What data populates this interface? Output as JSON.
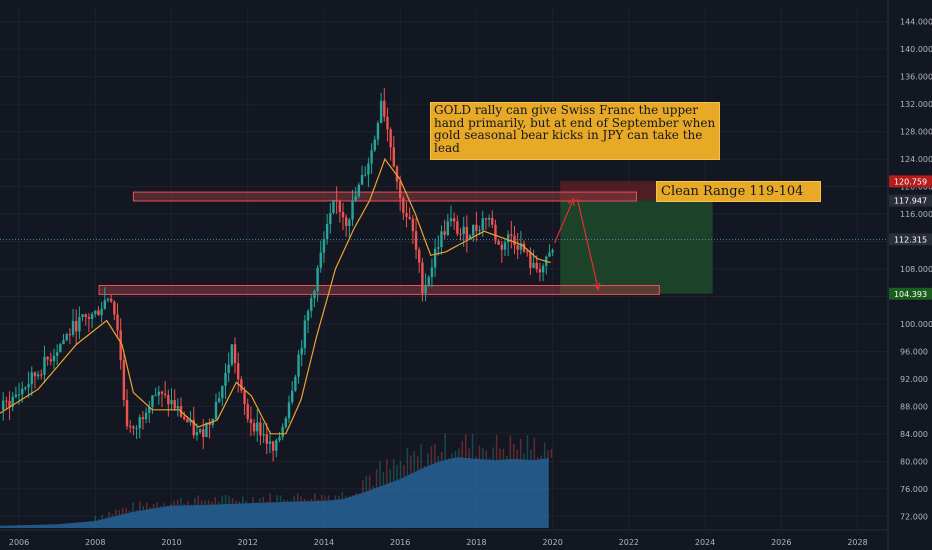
{
  "annotations": {
    "note_text": "GOLD rally can give Swiss Franc the upper hand primarily, but at end of September when gold seasonal bear kicks in JPY can take the lead",
    "range_label": "Clean Range 119-104"
  },
  "price_badges": [
    {
      "value": "120.759",
      "color": "#b71c1c"
    },
    {
      "value": "117.947",
      "color": "#2a2e39"
    },
    {
      "value": "112.315",
      "color": "#2a2e39"
    },
    {
      "value": "104.393",
      "color": "#1b5e20"
    }
  ],
  "colors": {
    "background": "#131722",
    "grid": "#1e222d",
    "up": "#26a69a",
    "down": "#ef5350",
    "ma": "#f0a030",
    "volume": "#2a6fa8",
    "zone_fill": "#8a3a40",
    "zone_stroke": "#e8505a",
    "target_fill": "#1f4a2a",
    "stop_fill": "#5a1e24",
    "arrow": "#e03030"
  },
  "chart_data": {
    "type": "candlestick",
    "x_ticks": [
      "2006",
      "2008",
      "2010",
      "2012",
      "2014",
      "2016",
      "2018",
      "2020",
      "2022",
      "2024",
      "2026",
      "2028"
    ],
    "y_ticks": [
      "72.000",
      "76.000",
      "80.000",
      "84.000",
      "88.000",
      "92.000",
      "96.000",
      "100.000",
      "104.000",
      "108.000",
      "112.000",
      "116.000",
      "120.000",
      "124.000",
      "128.000",
      "132.000",
      "136.000",
      "140.000",
      "144.000"
    ],
    "ylim": [
      70,
      146
    ],
    "xlim": [
      2005.5,
      2028.8
    ],
    "price_path": [
      [
        2005.5,
        87.5
      ],
      [
        2006.0,
        90.0
      ],
      [
        2006.5,
        93.0
      ],
      [
        2007.0,
        96.5
      ],
      [
        2007.5,
        100.0
      ],
      [
        2008.0,
        101.5
      ],
      [
        2008.4,
        104.5
      ],
      [
        2008.6,
        99.0
      ],
      [
        2008.8,
        86.0
      ],
      [
        2009.0,
        84.0
      ],
      [
        2009.5,
        90.0
      ],
      [
        2010.0,
        88.5
      ],
      [
        2010.3,
        86.5
      ],
      [
        2010.7,
        83.5
      ],
      [
        2011.0,
        86.0
      ],
      [
        2011.4,
        92.0
      ],
      [
        2011.6,
        97.0
      ],
      [
        2011.8,
        90.0
      ],
      [
        2012.0,
        86.5
      ],
      [
        2012.4,
        84.0
      ],
      [
        2012.7,
        81.0
      ],
      [
        2013.0,
        87.0
      ],
      [
        2013.3,
        94.5
      ],
      [
        2013.6,
        102.0
      ],
      [
        2014.0,
        112.0
      ],
      [
        2014.3,
        118.0
      ],
      [
        2014.6,
        115.0
      ],
      [
        2015.0,
        121.0
      ],
      [
        2015.3,
        126.0
      ],
      [
        2015.5,
        133.0
      ],
      [
        2015.8,
        125.0
      ],
      [
        2016.0,
        118.0
      ],
      [
        2016.3,
        114.0
      ],
      [
        2016.6,
        105.0
      ],
      [
        2016.8,
        108.0
      ],
      [
        2017.0,
        112.0
      ],
      [
        2017.3,
        115.0
      ],
      [
        2017.6,
        113.0
      ],
      [
        2018.0,
        114.0
      ],
      [
        2018.3,
        116.0
      ],
      [
        2018.6,
        111.0
      ],
      [
        2018.9,
        113.0
      ],
      [
        2019.2,
        111.0
      ],
      [
        2019.5,
        108.0
      ],
      [
        2019.8,
        108.5
      ],
      [
        2020.0,
        110.5
      ]
    ],
    "ma_path": [
      [
        2005.5,
        87.0
      ],
      [
        2006.5,
        90.5
      ],
      [
        2007.5,
        97.0
      ],
      [
        2008.3,
        100.5
      ],
      [
        2008.7,
        97.0
      ],
      [
        2009.0,
        90.0
      ],
      [
        2009.5,
        87.5
      ],
      [
        2010.2,
        87.5
      ],
      [
        2010.7,
        85.0
      ],
      [
        2011.2,
        86.0
      ],
      [
        2011.7,
        91.5
      ],
      [
        2012.1,
        89.5
      ],
      [
        2012.6,
        84.0
      ],
      [
        2013.0,
        84.0
      ],
      [
        2013.4,
        89.0
      ],
      [
        2013.8,
        98.0
      ],
      [
        2014.3,
        108.0
      ],
      [
        2014.8,
        114.0
      ],
      [
        2015.2,
        118.0
      ],
      [
        2015.6,
        124.0
      ],
      [
        2016.0,
        121.0
      ],
      [
        2016.4,
        116.0
      ],
      [
        2016.8,
        110.0
      ],
      [
        2017.2,
        110.5
      ],
      [
        2017.7,
        112.0
      ],
      [
        2018.2,
        113.5
      ],
      [
        2018.7,
        112.5
      ],
      [
        2019.2,
        111.5
      ],
      [
        2019.6,
        109.5
      ],
      [
        2019.9,
        109.0
      ]
    ],
    "volume_path": [
      [
        2005.5,
        0.5
      ],
      [
        2007.0,
        0.8
      ],
      [
        2008.0,
        1.5
      ],
      [
        2009.0,
        3.5
      ],
      [
        2010.0,
        4.8
      ],
      [
        2011.0,
        5.0
      ],
      [
        2012.0,
        5.3
      ],
      [
        2013.0,
        5.6
      ],
      [
        2014.0,
        5.8
      ],
      [
        2014.5,
        6.2
      ],
      [
        2015.0,
        7.5
      ],
      [
        2015.5,
        9.0
      ],
      [
        2016.0,
        10.5
      ],
      [
        2016.5,
        12.5
      ],
      [
        2017.0,
        14.2
      ],
      [
        2017.5,
        15.2
      ],
      [
        2018.0,
        14.8
      ],
      [
        2018.5,
        14.5
      ],
      [
        2019.0,
        14.8
      ],
      [
        2019.5,
        14.5
      ],
      [
        2019.9,
        15.0
      ]
    ],
    "volume_max": 15.0,
    "zones": [
      {
        "x0": 2009.0,
        "x1": 2022.2,
        "y0": 117.9,
        "y1": 119.2
      },
      {
        "x0": 2008.1,
        "x1": 2022.8,
        "y0": 104.3,
        "y1": 105.6
      }
    ],
    "stop_box": {
      "x0": 2020.2,
      "x1": 2024.2,
      "y0": 118.0,
      "y1": 120.8
    },
    "target_box": {
      "x0": 2020.2,
      "x1": 2024.2,
      "y0": 104.4,
      "y1": 118.0
    },
    "arrows": [
      {
        "from": [
          2020.05,
          111.8
        ],
        "to": [
          2020.55,
          118.2
        ]
      },
      {
        "from": [
          2020.65,
          118.2
        ],
        "to": [
          2021.2,
          105.0
        ]
      }
    ],
    "current_price": 112.315,
    "grid": true
  }
}
